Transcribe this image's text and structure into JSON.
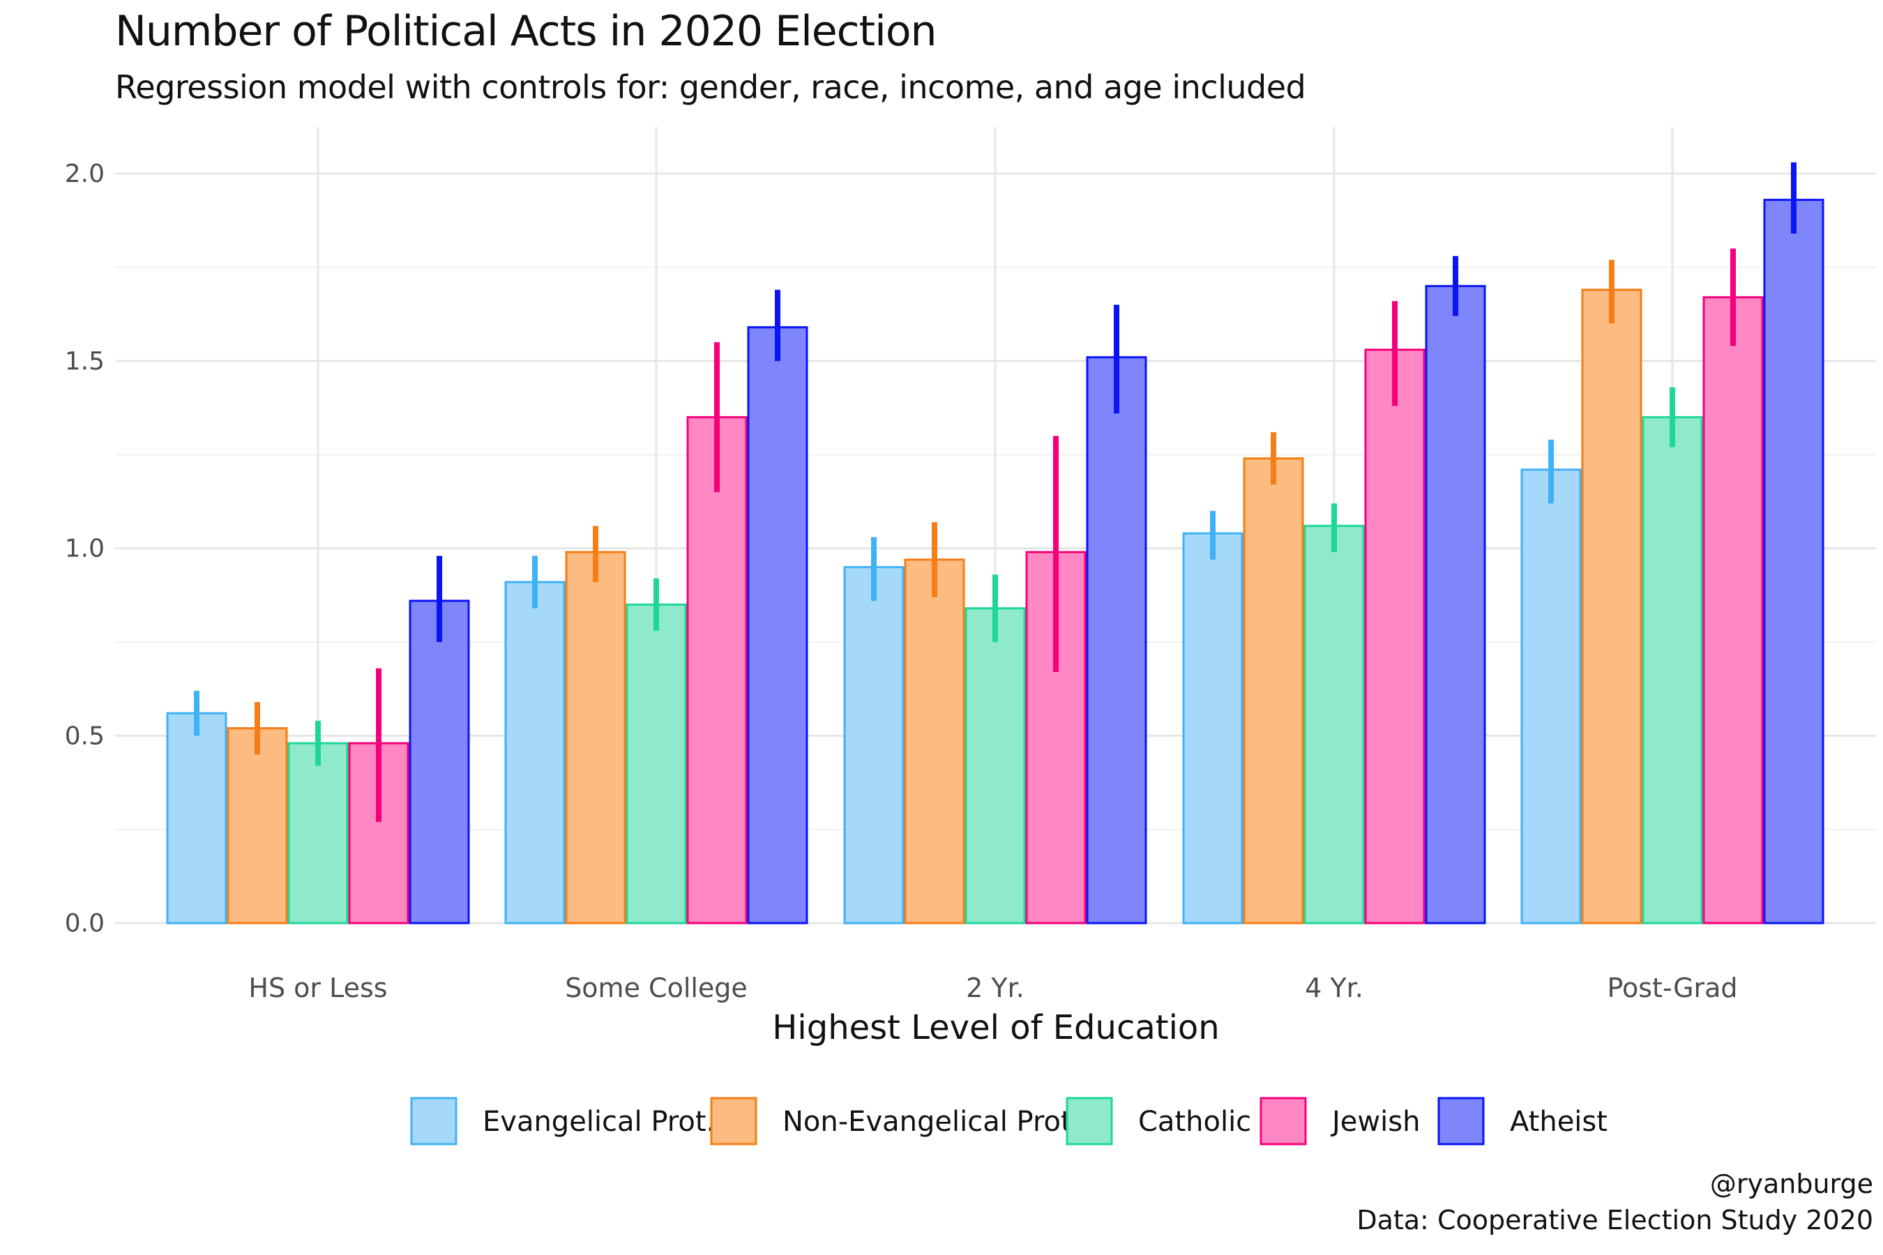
{
  "chart_data": {
    "type": "bar",
    "title": "Number of Political Acts in 2020 Election",
    "subtitle": "Regression model with controls for: gender, race, income, and age included",
    "xlabel": "Highest Level of Education",
    "ylabel": "",
    "ylim": [
      0,
      2.05
    ],
    "yticks": [
      0.0,
      0.5,
      1.0,
      1.5,
      2.0
    ],
    "ytick_labels": [
      "0.0",
      "0.5",
      "1.0",
      "1.5",
      "2.0"
    ],
    "grid": true,
    "legend_position": "bottom",
    "categories": [
      "HS or Less",
      "Some College",
      "2 Yr.",
      "4 Yr.",
      "Post-Grad"
    ],
    "series": [
      {
        "name": "Evangelical Prot.",
        "color": "#3FB1F5",
        "fill": "#A6D8FA",
        "values": [
          0.56,
          0.91,
          0.95,
          1.04,
          1.21
        ],
        "lower": [
          0.5,
          0.84,
          0.86,
          0.97,
          1.12
        ],
        "upper": [
          0.62,
          0.98,
          1.03,
          1.1,
          1.29
        ]
      },
      {
        "name": "Non-Evangelical Prot.",
        "color": "#F57E16",
        "fill": "#FCBB80",
        "values": [
          0.52,
          0.99,
          0.97,
          1.24,
          1.69
        ],
        "lower": [
          0.45,
          0.91,
          0.87,
          1.17,
          1.6
        ],
        "upper": [
          0.59,
          1.06,
          1.07,
          1.31,
          1.77
        ]
      },
      {
        "name": "Catholic",
        "color": "#1FD699",
        "fill": "#8EEACB",
        "values": [
          0.48,
          0.85,
          0.84,
          1.06,
          1.35
        ],
        "lower": [
          0.42,
          0.78,
          0.75,
          0.99,
          1.27
        ],
        "upper": [
          0.54,
          0.92,
          0.93,
          1.12,
          1.43
        ]
      },
      {
        "name": "Jewish",
        "color": "#F5007A",
        "fill": "#FF87C3",
        "values": [
          0.48,
          1.35,
          0.99,
          1.53,
          1.67
        ],
        "lower": [
          0.27,
          1.15,
          0.67,
          1.38,
          1.54
        ],
        "upper": [
          0.68,
          1.55,
          1.3,
          1.66,
          1.8
        ]
      },
      {
        "name": "Atheist",
        "color": "#0A14F5",
        "fill": "#7F86FC",
        "values": [
          0.86,
          1.59,
          1.51,
          1.7,
          1.93
        ],
        "lower": [
          0.75,
          1.5,
          1.36,
          1.62,
          1.84
        ],
        "upper": [
          0.98,
          1.69,
          1.65,
          1.78,
          2.03
        ]
      }
    ]
  },
  "caption": {
    "line1": "@ryanburge",
    "line2": "Data: Cooperative Election Study 2020"
  }
}
